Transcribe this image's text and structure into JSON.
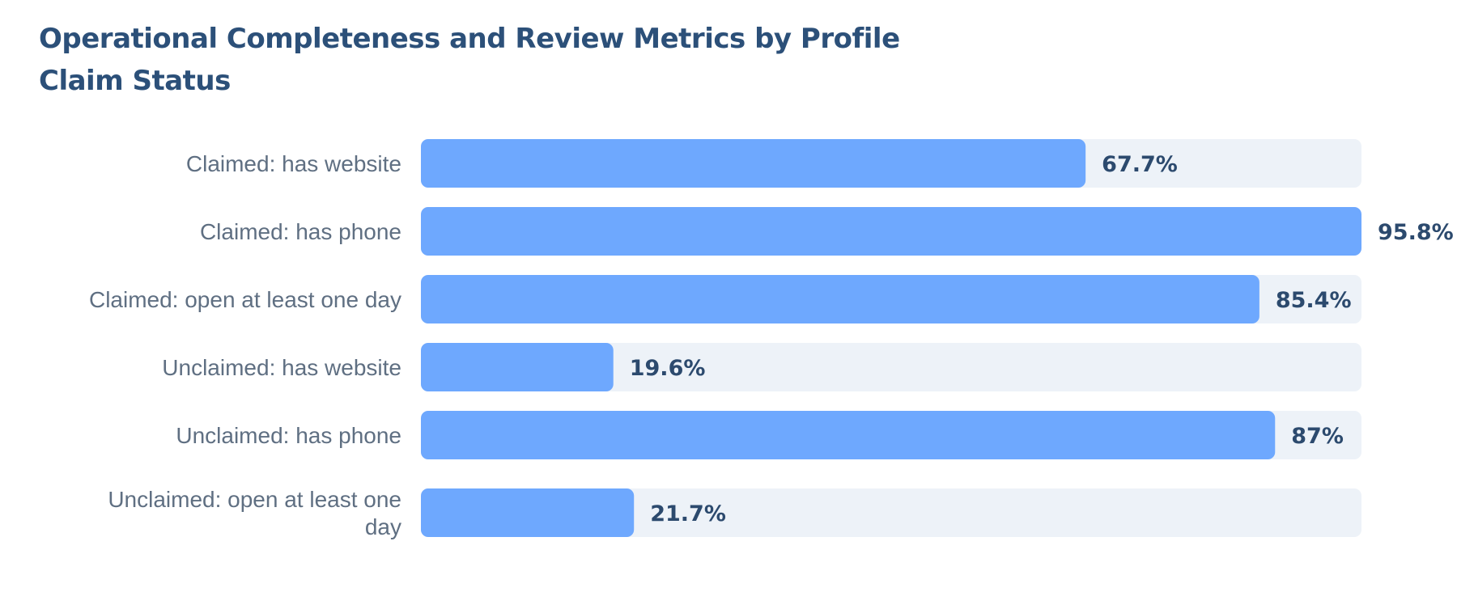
{
  "chart_data": {
    "type": "bar",
    "orientation": "horizontal",
    "title": "Operational Completeness and Review Metrics by Profile Claim Status",
    "xlabel": "",
    "ylabel": "",
    "xlim": [
      0,
      95.8
    ],
    "grid": false,
    "legend": "none",
    "categories": [
      "Claimed: has website",
      "Claimed: has phone",
      "Claimed: open at least one day",
      "Unclaimed: has website",
      "Unclaimed: has phone",
      "Unclaimed: open at least one day"
    ],
    "values": [
      67.7,
      95.8,
      85.4,
      19.6,
      87,
      21.7
    ],
    "value_labels": [
      "67.7%",
      "95.8%",
      "85.4%",
      "19.6%",
      "87%",
      "21.7%"
    ],
    "colors": {
      "bar": "#6ea8fe",
      "track": "#edf2f8",
      "value_text": "#2c4a6e",
      "category_text": "#5f6f82",
      "title": "#2c5079"
    }
  }
}
